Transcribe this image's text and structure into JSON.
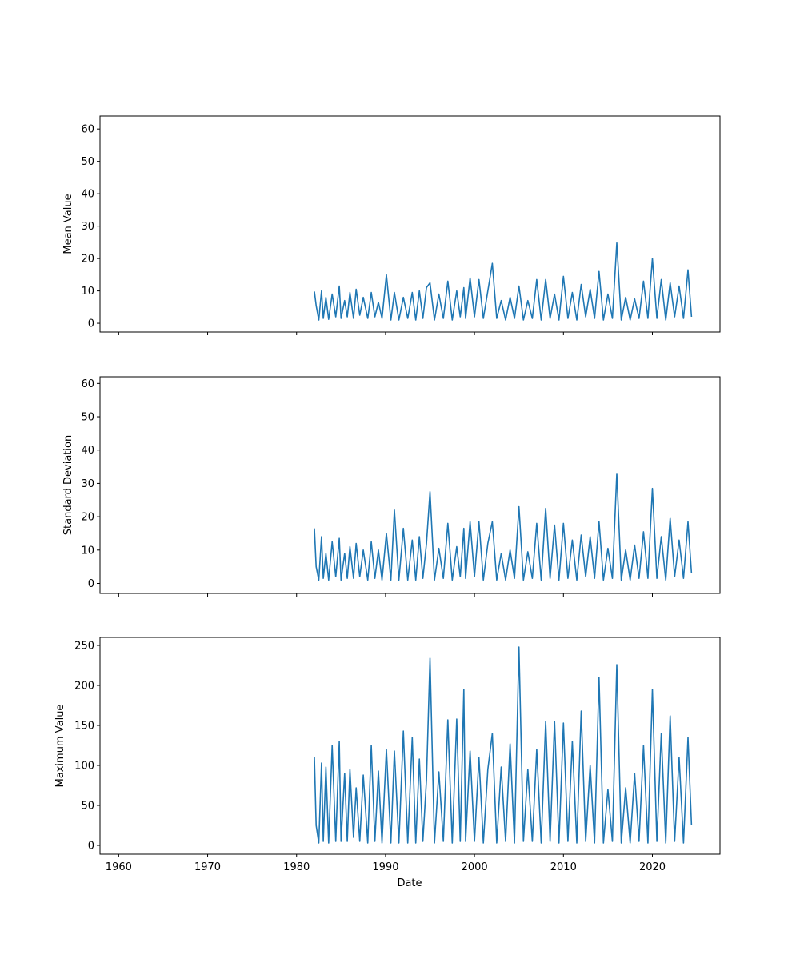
{
  "figure": {
    "xlabel": "Date",
    "x_ticks": [
      "1960",
      "1970",
      "1980",
      "1990",
      "2000",
      "2010",
      "2020"
    ],
    "colors": {
      "line": "#1f77b4",
      "axes": "#000000",
      "background": "#ffffff"
    }
  },
  "chart_data": [
    {
      "type": "line",
      "ylabel": "Mean Value",
      "xlim": [
        1957.9,
        2027.6
      ],
      "ylim": [
        -2.7,
        64.0
      ],
      "y_ticks": [
        0,
        10,
        20,
        30,
        40,
        50,
        60
      ],
      "x_ticks": [
        1960,
        1970,
        1980,
        1990,
        2000,
        2010,
        2020
      ],
      "show_x_tick_labels": false,
      "grid": false,
      "series": [
        {
          "x": [
            1982.0,
            1982.2,
            1982.5,
            1982.8,
            1983.0,
            1983.3,
            1983.6,
            1984.0,
            1984.4,
            1984.8,
            1985.0,
            1985.4,
            1985.7,
            1986.0,
            1986.4,
            1986.7,
            1987.1,
            1987.5,
            1988.0,
            1988.4,
            1988.8,
            1989.2,
            1989.6,
            1990.1,
            1990.6,
            1991.0,
            1991.5,
            1992.0,
            1992.5,
            1993.0,
            1993.4,
            1993.8,
            1994.2,
            1994.6,
            1995.0,
            1995.5,
            1996.0,
            1996.5,
            1997.0,
            1997.5,
            1998.0,
            1998.4,
            1998.8,
            1999.0,
            1999.5,
            2000.0,
            2000.5,
            2001.0,
            2001.5,
            2002.0,
            2002.5,
            2003.0,
            2003.5,
            2004.0,
            2004.5,
            2005.0,
            2005.5,
            2006.0,
            2006.5,
            2007.0,
            2007.5,
            2008.0,
            2008.5,
            2009.0,
            2009.5,
            2010.0,
            2010.5,
            2011.0,
            2011.5,
            2012.0,
            2012.5,
            2013.0,
            2013.5,
            2014.0,
            2014.5,
            2015.0,
            2015.5,
            2016.0,
            2016.5,
            2017.0,
            2017.5,
            2018.0,
            2018.5,
            2019.0,
            2019.5,
            2020.0,
            2020.5,
            2021.0,
            2021.5,
            2022.0,
            2022.5,
            2023.0,
            2023.5,
            2024.0,
            2024.4
          ],
          "y": [
            9.8,
            5.5,
            1.0,
            10.0,
            1.5,
            8.0,
            1.2,
            9.0,
            2.0,
            11.5,
            1.5,
            7.0,
            2.0,
            9.5,
            1.5,
            10.5,
            2.5,
            8.0,
            1.5,
            9.5,
            2.0,
            6.5,
            1.5,
            15.0,
            1.0,
            9.5,
            1.0,
            8.0,
            1.5,
            9.5,
            1.0,
            10.0,
            1.5,
            11.0,
            12.5,
            1.0,
            9.0,
            1.5,
            13.0,
            1.0,
            10.0,
            2.0,
            11.0,
            1.5,
            14.0,
            2.0,
            13.5,
            1.5,
            10.0,
            18.5,
            1.5,
            7.0,
            1.0,
            8.0,
            1.5,
            11.5,
            1.0,
            7.0,
            1.5,
            13.5,
            1.0,
            13.5,
            1.5,
            9.0,
            1.0,
            14.5,
            1.5,
            9.5,
            1.0,
            12.0,
            2.0,
            10.5,
            1.5,
            16.0,
            1.0,
            9.0,
            1.5,
            24.8,
            1.0,
            8.0,
            1.0,
            7.5,
            1.5,
            13.0,
            1.5,
            20.0,
            1.5,
            13.5,
            1.0,
            12.5,
            2.0,
            11.5,
            1.5,
            16.5,
            2.0
          ]
        }
      ]
    },
    {
      "type": "line",
      "ylabel": "Standard Deviation",
      "xlim": [
        1957.9,
        2027.6
      ],
      "ylim": [
        -3.0,
        62.0
      ],
      "y_ticks": [
        0,
        10,
        20,
        30,
        40,
        50,
        60
      ],
      "x_ticks": [
        1960,
        1970,
        1980,
        1990,
        2000,
        2010,
        2020
      ],
      "show_x_tick_labels": false,
      "grid": false,
      "series": [
        {
          "x": [
            1982.0,
            1982.2,
            1982.5,
            1982.8,
            1983.0,
            1983.3,
            1983.6,
            1984.0,
            1984.4,
            1984.8,
            1985.0,
            1985.4,
            1985.7,
            1986.0,
            1986.4,
            1986.7,
            1987.1,
            1987.5,
            1988.0,
            1988.4,
            1988.8,
            1989.2,
            1989.6,
            1990.1,
            1990.6,
            1991.0,
            1991.5,
            1992.0,
            1992.5,
            1993.0,
            1993.4,
            1993.8,
            1994.2,
            1994.6,
            1995.0,
            1995.5,
            1996.0,
            1996.5,
            1997.0,
            1997.5,
            1998.0,
            1998.4,
            1998.8,
            1999.0,
            1999.5,
            2000.0,
            2000.5,
            2001.0,
            2001.5,
            2002.0,
            2002.5,
            2003.0,
            2003.5,
            2004.0,
            2004.5,
            2005.0,
            2005.5,
            2006.0,
            2006.5,
            2007.0,
            2007.5,
            2008.0,
            2008.5,
            2009.0,
            2009.5,
            2010.0,
            2010.5,
            2011.0,
            2011.5,
            2012.0,
            2012.5,
            2013.0,
            2013.5,
            2014.0,
            2014.5,
            2015.0,
            2015.5,
            2016.0,
            2016.5,
            2017.0,
            2017.5,
            2018.0,
            2018.5,
            2019.0,
            2019.5,
            2020.0,
            2020.5,
            2021.0,
            2021.5,
            2022.0,
            2022.5,
            2023.0,
            2023.5,
            2024.0,
            2024.4
          ],
          "y": [
            16.5,
            5.0,
            1.0,
            14.0,
            1.5,
            9.0,
            1.0,
            12.5,
            2.0,
            13.5,
            1.0,
            9.0,
            1.5,
            11.0,
            1.5,
            12.0,
            2.0,
            10.0,
            1.0,
            12.5,
            1.5,
            10.0,
            1.0,
            15.0,
            1.0,
            22.0,
            1.0,
            16.5,
            1.0,
            13.0,
            1.0,
            14.0,
            1.5,
            12.0,
            27.5,
            1.0,
            10.5,
            1.5,
            18.0,
            1.0,
            11.0,
            2.0,
            16.5,
            1.5,
            18.5,
            2.0,
            18.5,
            1.0,
            12.0,
            18.5,
            1.0,
            9.0,
            1.0,
            10.0,
            1.5,
            23.0,
            1.0,
            9.5,
            1.5,
            18.0,
            1.0,
            22.5,
            1.5,
            17.5,
            1.0,
            18.0,
            1.5,
            13.0,
            1.0,
            14.5,
            2.0,
            14.0,
            1.5,
            18.5,
            1.0,
            10.5,
            1.5,
            33.0,
            1.0,
            10.0,
            1.0,
            11.5,
            1.5,
            15.5,
            1.5,
            28.5,
            1.5,
            14.0,
            1.0,
            19.5,
            2.0,
            13.0,
            1.5,
            18.5,
            3.0
          ]
        }
      ]
    },
    {
      "type": "line",
      "ylabel": "Maximum Value",
      "xlabel": "Date",
      "xlim": [
        1957.9,
        2027.6
      ],
      "ylim": [
        -11.0,
        260.0
      ],
      "y_ticks": [
        0,
        50,
        100,
        150,
        200,
        250
      ],
      "x_ticks": [
        1960,
        1970,
        1980,
        1990,
        2000,
        2010,
        2020
      ],
      "show_x_tick_labels": true,
      "grid": false,
      "series": [
        {
          "x": [
            1982.0,
            1982.2,
            1982.5,
            1982.8,
            1983.0,
            1983.3,
            1983.6,
            1984.0,
            1984.4,
            1984.8,
            1985.0,
            1985.4,
            1985.7,
            1986.0,
            1986.4,
            1986.7,
            1987.1,
            1987.5,
            1988.0,
            1988.4,
            1988.8,
            1989.2,
            1989.6,
            1990.1,
            1990.6,
            1991.0,
            1991.5,
            1992.0,
            1992.5,
            1993.0,
            1993.4,
            1993.8,
            1994.2,
            1994.6,
            1995.0,
            1995.5,
            1996.0,
            1996.5,
            1997.0,
            1997.5,
            1998.0,
            1998.4,
            1998.8,
            1999.0,
            1999.5,
            2000.0,
            2000.5,
            2001.0,
            2001.5,
            2002.0,
            2002.5,
            2003.0,
            2003.5,
            2004.0,
            2004.5,
            2005.0,
            2005.5,
            2006.0,
            2006.5,
            2007.0,
            2007.5,
            2008.0,
            2008.5,
            2009.0,
            2009.5,
            2010.0,
            2010.5,
            2011.0,
            2011.5,
            2012.0,
            2012.5,
            2013.0,
            2013.5,
            2014.0,
            2014.5,
            2015.0,
            2015.5,
            2016.0,
            2016.5,
            2017.0,
            2017.5,
            2018.0,
            2018.5,
            2019.0,
            2019.5,
            2020.0,
            2020.5,
            2021.0,
            2021.5,
            2022.0,
            2022.5,
            2023.0,
            2023.5,
            2024.0,
            2024.4
          ],
          "y": [
            110,
            25,
            3,
            103,
            5,
            98,
            3,
            125,
            5,
            130,
            5,
            90,
            5,
            95,
            10,
            72,
            5,
            88,
            3,
            125,
            5,
            93,
            3,
            120,
            3,
            118,
            3,
            143,
            3,
            135,
            3,
            108,
            5,
            82,
            234,
            3,
            92,
            5,
            157,
            3,
            158,
            5,
            195,
            5,
            118,
            5,
            110,
            3,
            95,
            140,
            3,
            98,
            5,
            127,
            3,
            248,
            5,
            95,
            5,
            120,
            3,
            155,
            5,
            155,
            3,
            153,
            5,
            130,
            3,
            168,
            5,
            100,
            3,
            210,
            3,
            70,
            5,
            226,
            3,
            72,
            3,
            90,
            5,
            125,
            3,
            195,
            5,
            140,
            3,
            162,
            5,
            110,
            3,
            135,
            25
          ]
        }
      ]
    }
  ]
}
